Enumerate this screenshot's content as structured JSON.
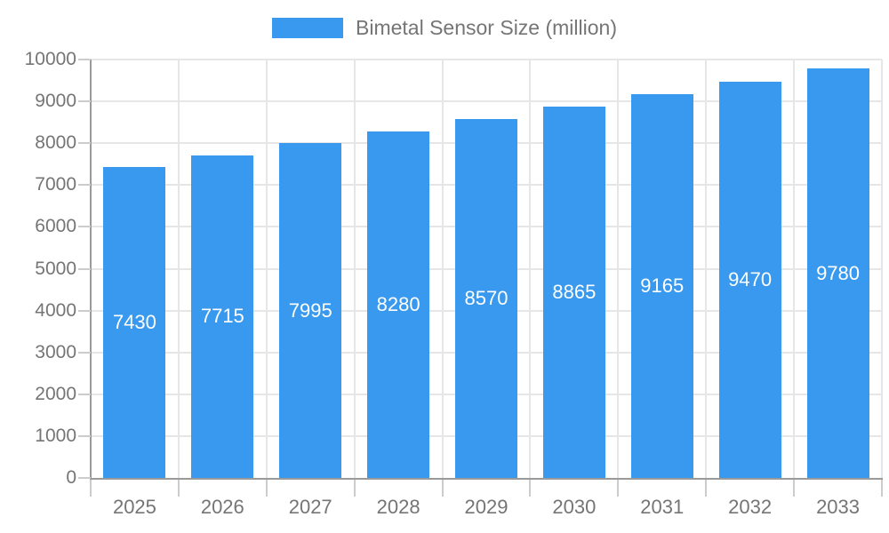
{
  "chart_data": {
    "type": "bar",
    "title": "Bimetal Sensor Size (million)",
    "series": [
      {
        "name": "Bimetal Sensor Size (million)",
        "values": [
          7430,
          7715,
          7995,
          8280,
          8570,
          8865,
          9165,
          9470,
          9780
        ]
      }
    ],
    "categories": [
      "2025",
      "2026",
      "2027",
      "2028",
      "2029",
      "2030",
      "2031",
      "2032",
      "2033"
    ],
    "values": [
      7430,
      7715,
      7995,
      8280,
      8570,
      8865,
      9165,
      9470,
      9780
    ],
    "bar_labels": [
      "7430",
      "7715",
      "7995",
      "8280",
      "8570",
      "8865",
      "9165",
      "9470",
      "9780"
    ],
    "xlabel": "",
    "ylabel": "",
    "ylim": [
      0,
      10000
    ],
    "y_tick_step": 1000,
    "y_ticks": [
      0,
      1000,
      2000,
      3000,
      4000,
      5000,
      6000,
      7000,
      8000,
      9000,
      10000
    ],
    "y_tick_labels": [
      "0",
      "1000",
      "2000",
      "3000",
      "4000",
      "5000",
      "6000",
      "7000",
      "8000",
      "9000",
      "10000"
    ],
    "grid": "horizontal-and-vertical",
    "legend_position": "top-center",
    "bar_label_position": "inside-center",
    "colors": {
      "bar": "#3899EE",
      "bar_label": "#FFFFFF",
      "axis": "#9A9A9A",
      "grid": "#E6E6E6",
      "tick": "#CCCCCC",
      "text": "#757575",
      "background": "#FFFFFF"
    }
  }
}
